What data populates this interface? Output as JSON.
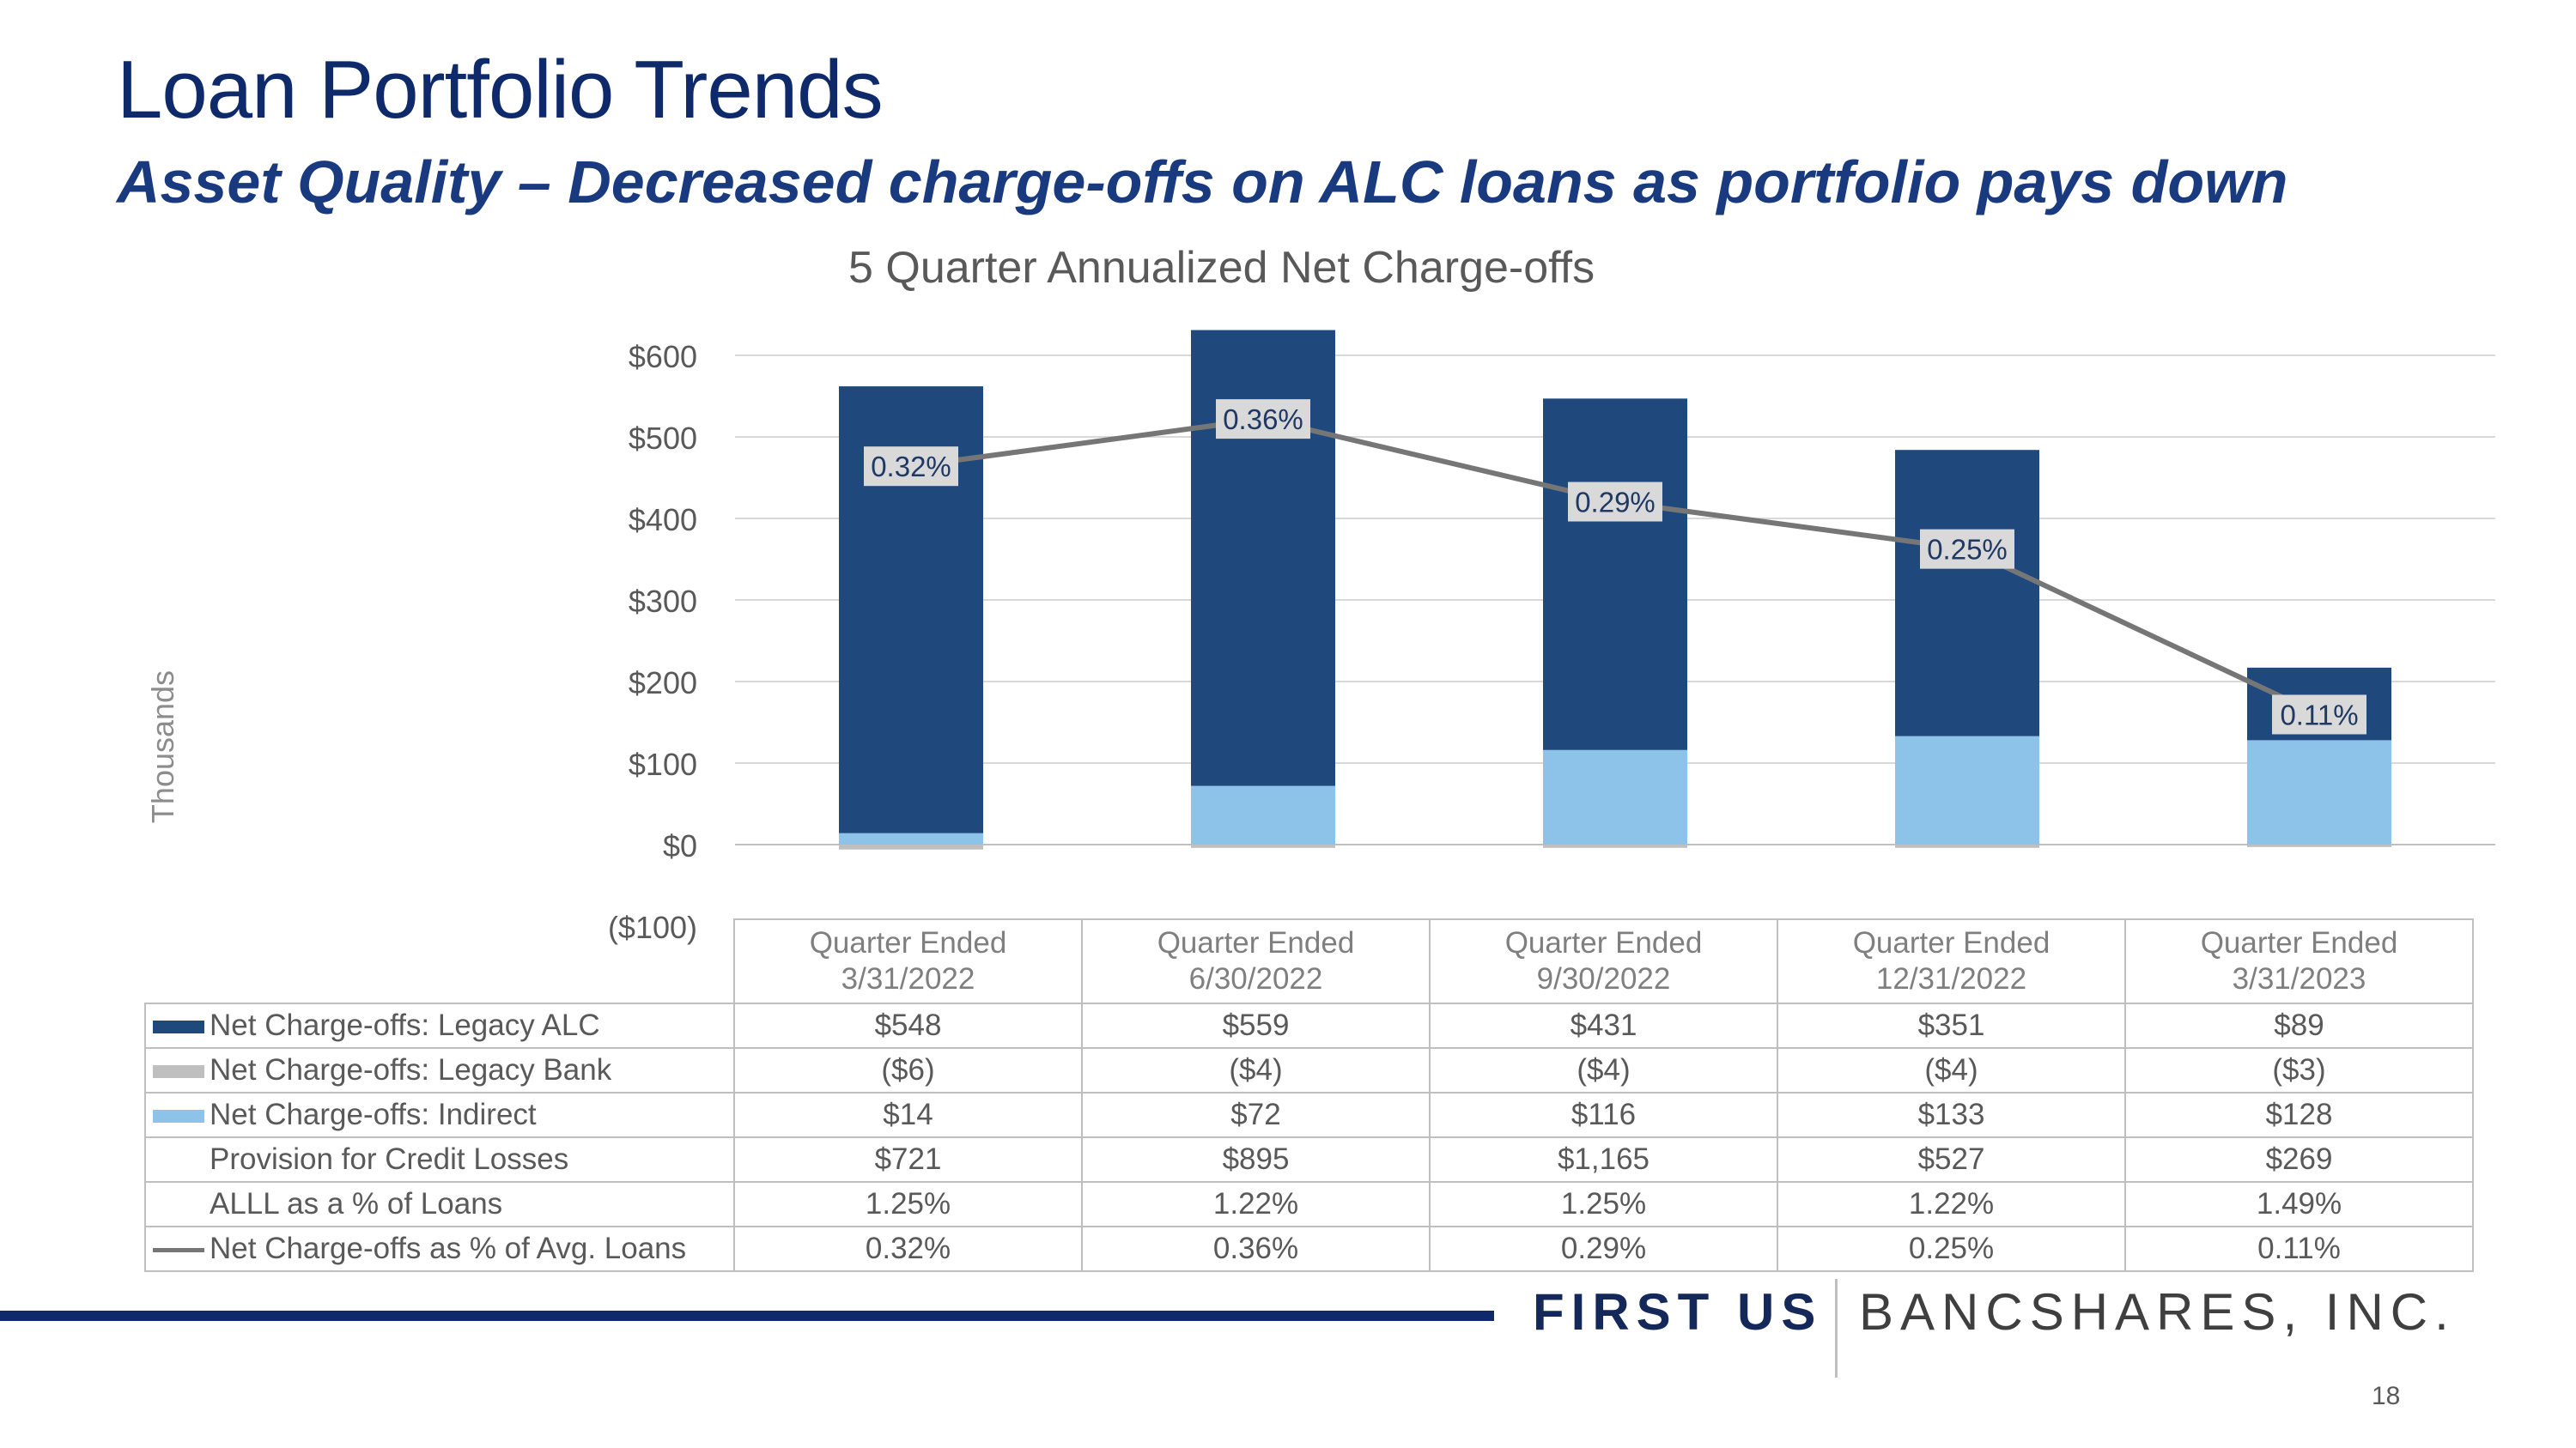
{
  "slide": {
    "title": "Loan Portfolio Trends",
    "subtitle": "Asset Quality – Decreased charge-offs on ALC loans as portfolio pays down",
    "page_number": "18",
    "brand_first": "FIRST US",
    "brand_second": "BANCSHARES, INC."
  },
  "chart_data": {
    "type": "bar",
    "stacked": true,
    "title": "5 Quarter Annualized Net Charge-offs",
    "ylabel": "Thousands",
    "ylim": [
      -100,
      600
    ],
    "yticks": [
      -100,
      0,
      100,
      200,
      300,
      400,
      500,
      600
    ],
    "ytick_labels": [
      "($100)",
      "$0",
      "$100",
      "$200",
      "$300",
      "$400",
      "$500",
      "$600"
    ],
    "categories": [
      [
        "Quarter Ended",
        "3/31/2022"
      ],
      [
        "Quarter Ended",
        "6/30/2022"
      ],
      [
        "Quarter Ended",
        "9/30/2022"
      ],
      [
        "Quarter Ended",
        "12/31/2022"
      ],
      [
        "Quarter Ended",
        "3/31/2023"
      ]
    ],
    "series": [
      {
        "name": "Net Charge-offs: Legacy ALC",
        "color": "#1f497d",
        "values": [
          548,
          559,
          431,
          351,
          89
        ]
      },
      {
        "name": "Net Charge-offs: Legacy Bank",
        "color": "#bfbfbf",
        "values": [
          -6,
          -4,
          -4,
          -4,
          -3
        ]
      },
      {
        "name": "Net Charge-offs: Indirect",
        "color": "#8dc3e8",
        "values": [
          14,
          72,
          116,
          133,
          128
        ]
      }
    ],
    "line": {
      "name": "Net Charge-offs as % of Avg. Loans",
      "color": "#767676",
      "values": [
        0.32,
        0.36,
        0.29,
        0.25,
        0.11
      ],
      "labels": [
        "0.32%",
        "0.36%",
        "0.29%",
        "0.25%",
        "0.11%"
      ]
    },
    "table": {
      "rows": [
        {
          "label": "Net Charge-offs: Legacy ALC",
          "key": "bar",
          "color": "#1f497d",
          "cells": [
            "$548",
            "$559",
            "$431",
            "$351",
            "$89"
          ]
        },
        {
          "label": "Net Charge-offs: Legacy Bank",
          "key": "bar",
          "color": "#bfbfbf",
          "cells": [
            "($6)",
            "($4)",
            "($4)",
            "($4)",
            "($3)"
          ]
        },
        {
          "label": "Net Charge-offs: Indirect",
          "key": "bar",
          "color": "#8dc3e8",
          "cells": [
            "$14",
            "$72",
            "$116",
            "$133",
            "$128"
          ]
        },
        {
          "label": "Provision for Credit Losses",
          "key": "none",
          "color": "",
          "cells": [
            "$721",
            "$895",
            "$1,165",
            "$527",
            "$269"
          ]
        },
        {
          "label": "ALLL as a % of Loans",
          "key": "none",
          "color": "",
          "cells": [
            "1.25%",
            "1.22%",
            "1.25%",
            "1.22%",
            "1.49%"
          ]
        },
        {
          "label": "Net Charge-offs as % of Avg. Loans",
          "key": "line",
          "color": "#767676",
          "cells": [
            "0.32%",
            "0.36%",
            "0.29%",
            "0.25%",
            "0.11%"
          ]
        }
      ]
    }
  }
}
